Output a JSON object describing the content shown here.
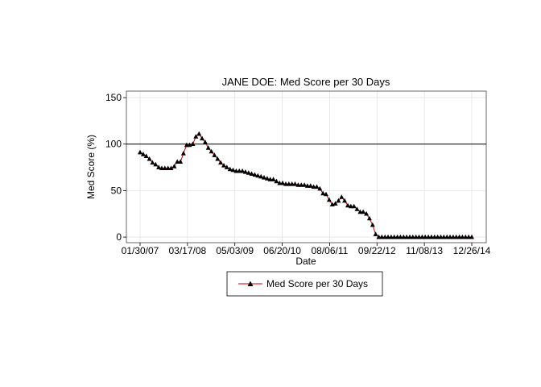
{
  "chart_data": {
    "type": "line",
    "title": "JANE DOE: Med Score per 30 Days",
    "xlabel": "Date",
    "ylabel": "Med Score (%)",
    "x_tick_labels": [
      "01/30/07",
      "03/17/08",
      "05/03/09",
      "06/20/10",
      "08/06/11",
      "09/22/12",
      "11/08/13",
      "12/26/14"
    ],
    "y_ticks": [
      0,
      50,
      100,
      150
    ],
    "y_tick_labels": [
      "0",
      "50",
      "100",
      "150"
    ],
    "ylim": [
      -6,
      157
    ],
    "reference_line": 100,
    "grid": true,
    "legend_position": "bottom",
    "series": [
      {
        "name": "Med Score per 30 Days",
        "color": "#cc0000",
        "marker_color": "#000000",
        "marker": "triangle",
        "x_range": [
          "01/30/07",
          "12/26/14"
        ],
        "values": [
          91,
          89,
          87,
          84,
          80,
          78,
          75,
          74,
          74,
          74,
          74,
          76,
          81,
          81,
          90,
          99,
          99,
          100,
          108,
          111,
          106,
          102,
          96,
          92,
          88,
          84,
          80,
          77,
          75,
          73,
          72,
          71,
          71,
          71,
          70,
          69,
          68,
          67,
          66,
          65,
          64,
          63,
          62,
          62,
          60,
          58,
          58,
          57,
          57,
          57,
          57,
          56,
          56,
          56,
          55,
          55,
          54,
          54,
          52,
          47,
          46,
          40,
          35,
          36,
          39,
          43,
          39,
          34,
          33,
          33,
          30,
          27,
          27,
          25,
          20,
          13,
          3,
          0,
          0,
          0,
          0,
          0,
          0,
          0,
          0,
          0,
          0,
          0,
          0,
          0,
          0,
          0,
          0,
          0,
          0,
          0,
          0,
          0,
          0,
          0,
          0,
          0,
          0,
          0,
          0,
          0,
          0,
          0
        ]
      }
    ]
  }
}
